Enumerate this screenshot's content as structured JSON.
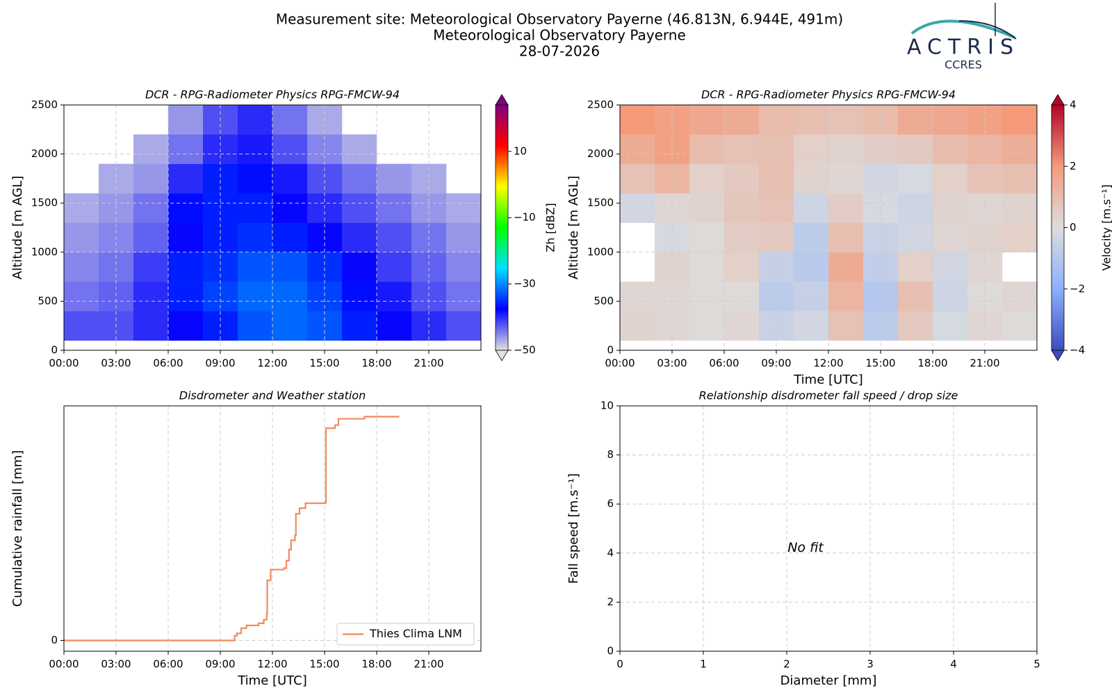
{
  "header": {
    "title": [
      "Measurement site: Meteorological Observatory Payerne (46.813N, 6.944E, 491m)",
      "Meteorological Observatory Payerne",
      "28-07-2026"
    ],
    "logo": {
      "name": "ACTRIS",
      "subtitle": "CCRES"
    }
  },
  "chart_data": [
    {
      "type": "heatmap",
      "title": "DCR - RPG-Radiometer Physics RPG-FMCW-94",
      "ylabel": "Altitude [m AGL]",
      "xlim": [
        0,
        24
      ],
      "xticks": [
        {
          "value": 0,
          "label": "00:00"
        },
        {
          "value": 3,
          "label": "03:00"
        },
        {
          "value": 6,
          "label": "06:00"
        },
        {
          "value": 9,
          "label": "09:00"
        },
        {
          "value": 12,
          "label": "12:00"
        },
        {
          "value": 15,
          "label": "15:00"
        },
        {
          "value": 18,
          "label": "18:00"
        },
        {
          "value": 21,
          "label": "21:00"
        }
      ],
      "ylim": [
        0,
        2500
      ],
      "yticks": [
        0,
        500,
        1000,
        1500,
        2000,
        2500
      ],
      "grid": true,
      "x": [
        0,
        2,
        4,
        6,
        8,
        10,
        12,
        14,
        16,
        18,
        20,
        22
      ],
      "y": [
        100,
        400,
        700,
        1000,
        1300,
        1600,
        1900,
        2200
      ],
      "z": [
        [
          -42,
          -42,
          -40,
          -38,
          -36,
          -33,
          -32,
          -33,
          -36,
          -38,
          -40,
          -42
        ],
        [
          -44,
          -43,
          -40,
          -36,
          -34,
          -32,
          -32,
          -34,
          -37,
          -39,
          -42,
          -44
        ],
        [
          -45,
          -44,
          -41,
          -36,
          -35,
          -33,
          -33,
          -35,
          -38,
          -41,
          -43,
          -45
        ],
        [
          -46,
          -45,
          -43,
          -38,
          -36,
          -35,
          -36,
          -38,
          -40,
          -42,
          -44,
          -46
        ],
        [
          -47,
          -46,
          -44,
          -37,
          -36,
          -36,
          -38,
          -40,
          -42,
          -44,
          -46,
          -47
        ],
        [
          null,
          -47,
          -46,
          -40,
          -36,
          -37,
          -39,
          -42,
          -44,
          -46,
          -47,
          null
        ],
        [
          null,
          null,
          -47,
          -44,
          -40,
          -39,
          -42,
          -45,
          -47,
          null,
          null,
          null
        ],
        [
          null,
          null,
          null,
          -46,
          -42,
          -40,
          -44,
          -47,
          null,
          null,
          null,
          null
        ]
      ],
      "clim": [
        -50,
        24
      ],
      "cticks": [
        {
          "value": -50,
          "label": "−50"
        },
        {
          "value": -30,
          "label": "−30"
        },
        {
          "value": -10,
          "label": "−10"
        },
        10
      ],
      "clabel": "Zh [dBZ]",
      "colormap": [
        "#e0e0e0",
        "#0000ff",
        "#00e0ff",
        "#00ff00",
        "#ffff00",
        "#ff0000",
        "#800080"
      ]
    },
    {
      "type": "heatmap",
      "title": "DCR - RPG-Radiometer Physics RPG-FMCW-94",
      "ylabel": "Altitude [m AGL]",
      "xlabel": "Time [UTC]",
      "xlim": [
        0,
        24
      ],
      "xticks": [
        {
          "value": 0,
          "label": "00:00"
        },
        {
          "value": 3,
          "label": "03:00"
        },
        {
          "value": 6,
          "label": "06:00"
        },
        {
          "value": 9,
          "label": "09:00"
        },
        {
          "value": 12,
          "label": "12:00"
        },
        {
          "value": 15,
          "label": "15:00"
        },
        {
          "value": 18,
          "label": "18:00"
        },
        {
          "value": 21,
          "label": "21:00"
        }
      ],
      "ylim": [
        0,
        2500
      ],
      "yticks": [
        0,
        500,
        1000,
        1500,
        2000,
        2500
      ],
      "grid": true,
      "x": [
        0,
        2,
        4,
        6,
        8,
        10,
        12,
        14,
        16,
        18,
        20,
        22
      ],
      "y": [
        100,
        400,
        700,
        1000,
        1300,
        1600,
        1900,
        2200
      ],
      "z": [
        [
          0.3,
          0.2,
          0.1,
          0.2,
          -0.5,
          -0.3,
          0.8,
          -0.8,
          0.6,
          -0.2,
          0.2,
          0.1
        ],
        [
          0.2,
          0.2,
          0.1,
          0.1,
          -0.8,
          -0.6,
          1.2,
          -1.0,
          0.9,
          -0.4,
          0.1,
          0.2
        ],
        [
          null,
          0.3,
          0.1,
          0.4,
          -0.6,
          -0.9,
          1.5,
          -0.7,
          0.4,
          -0.3,
          0.2,
          null
        ],
        [
          null,
          -0.2,
          0.1,
          0.5,
          0.6,
          -0.8,
          0.9,
          -0.5,
          -0.3,
          0.2,
          0.3,
          0.4
        ],
        [
          -0.3,
          0.2,
          0.3,
          0.7,
          0.8,
          -0.4,
          0.5,
          -0.2,
          -0.4,
          0.3,
          0.2,
          0.3
        ],
        [
          0.8,
          1.2,
          0.4,
          0.6,
          0.9,
          0.3,
          0.2,
          -0.3,
          -0.2,
          0.4,
          0.8,
          0.9
        ],
        [
          1.5,
          1.8,
          1.0,
          0.8,
          0.9,
          0.4,
          0.3,
          0.5,
          0.6,
          1.0,
          1.2,
          1.4
        ],
        [
          2.0,
          1.8,
          1.6,
          1.5,
          1.0,
          0.9,
          0.8,
          1.0,
          1.5,
          1.6,
          1.8,
          2.0
        ]
      ],
      "clim": [
        -4,
        4
      ],
      "cticks": [
        {
          "value": -4,
          "label": "−4"
        },
        {
          "value": -2,
          "label": "−2"
        },
        0,
        2,
        4
      ],
      "clabel": "Velocity [m.s⁻¹]",
      "colormap": [
        "#3b4cc0",
        "#8db0fe",
        "#dddddd",
        "#f49a7b",
        "#b40426"
      ]
    },
    {
      "type": "line",
      "title": "Disdrometer and Weather station",
      "xlabel": "Time [UTC]",
      "ylabel": "Cumulative rainfall [mm]",
      "xlim": [
        0,
        24
      ],
      "xticks": [
        {
          "value": 0,
          "label": "00:00"
        },
        {
          "value": 3,
          "label": "03:00"
        },
        {
          "value": 6,
          "label": "06:00"
        },
        {
          "value": 9,
          "label": "09:00"
        },
        {
          "value": 12,
          "label": "12:00"
        },
        {
          "value": 15,
          "label": "15:00"
        },
        {
          "value": 18,
          "label": "18:00"
        },
        {
          "value": 21,
          "label": "21:00"
        }
      ],
      "ylim": [
        -0.46,
        10
      ],
      "yticks": [
        0
      ],
      "grid": true,
      "legend": "lower right",
      "drawstyle": "steps-post",
      "x": [
        0,
        9.82,
        9.95,
        10.2,
        10.5,
        11.2,
        11.5,
        11.67,
        11.7,
        11.9,
        12.66,
        12.8,
        12.95,
        13.07,
        13.3,
        13.35,
        13.56,
        13.9,
        15.04,
        15.08,
        15.6,
        15.8,
        17.3,
        19.3
      ],
      "series": [
        {
          "name": "Thies Clima LNM",
          "color": "#f08a5d",
          "values": [
            0,
            0.2,
            0.3,
            0.52,
            0.64,
            0.73,
            0.88,
            1.13,
            2.56,
            3.02,
            3.08,
            3.4,
            3.87,
            4.27,
            4.48,
            5.4,
            5.64,
            5.85,
            5.88,
            9.05,
            9.18,
            9.45,
            9.54,
            9.54
          ]
        }
      ]
    },
    {
      "type": "scatter",
      "title": "Relationship disdrometer fall speed / drop size",
      "xlabel": "Diameter [mm]",
      "ylabel": "Fall speed [m.s⁻¹]",
      "xlim": [
        0,
        5
      ],
      "xticks": [
        0,
        1,
        2,
        3,
        4,
        5
      ],
      "ylim": [
        0,
        10
      ],
      "yticks": [
        0,
        2,
        4,
        6,
        8,
        10
      ],
      "grid": true,
      "annotation": "No fit",
      "series": []
    }
  ]
}
